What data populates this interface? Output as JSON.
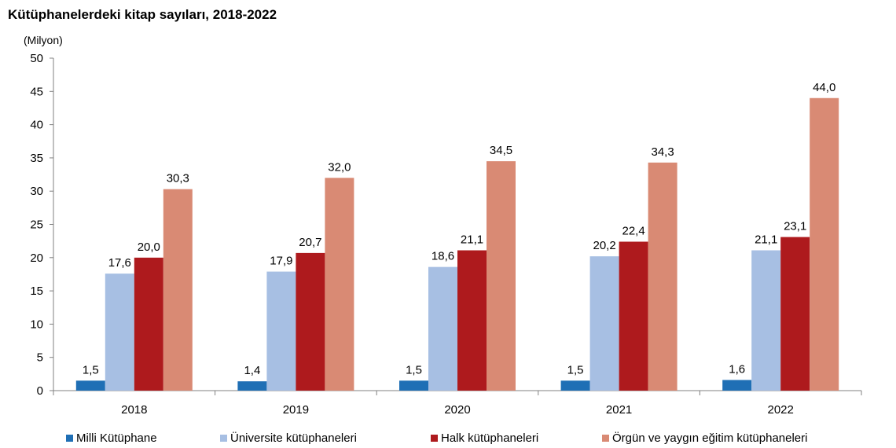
{
  "chart_data": {
    "type": "bar",
    "title": "Kütüphanelerdeki kitap sayıları, 2018-2022",
    "ylabel": "(Milyon)",
    "xlabel": "",
    "ylim": [
      0,
      50
    ],
    "yticks": [
      0,
      5,
      10,
      15,
      20,
      25,
      30,
      35,
      40,
      45,
      50
    ],
    "grid": false,
    "legend_position": "bottom",
    "categories": [
      "2018",
      "2019",
      "2020",
      "2021",
      "2022"
    ],
    "series": [
      {
        "name": "Milli Kütüphane",
        "color": "#1f6fb5",
        "values": [
          1.5,
          1.4,
          1.5,
          1.5,
          1.6
        ],
        "labels": [
          "1,5",
          "1,4",
          "1,5",
          "1,5",
          "1,6"
        ]
      },
      {
        "name": "Üniversite kütüphaneleri",
        "color": "#a7bfe3",
        "values": [
          17.6,
          17.9,
          18.6,
          20.2,
          21.1
        ],
        "labels": [
          "17,6",
          "17,9",
          "18,6",
          "20,2",
          "21,1"
        ]
      },
      {
        "name": "Halk kütüphaneleri",
        "color": "#ae1a1d",
        "values": [
          20.0,
          20.7,
          21.1,
          22.4,
          23.1
        ],
        "labels": [
          "20,0",
          "20,7",
          "21,1",
          "22,4",
          "23,1"
        ]
      },
      {
        "name": "Örgün ve yaygın eğitim kütüphaneleri",
        "color": "#d98a74",
        "values": [
          30.3,
          32.0,
          34.5,
          34.3,
          44.0
        ],
        "labels": [
          "30,3",
          "32,0",
          "34,5",
          "34,3",
          "44,0"
        ]
      }
    ]
  }
}
